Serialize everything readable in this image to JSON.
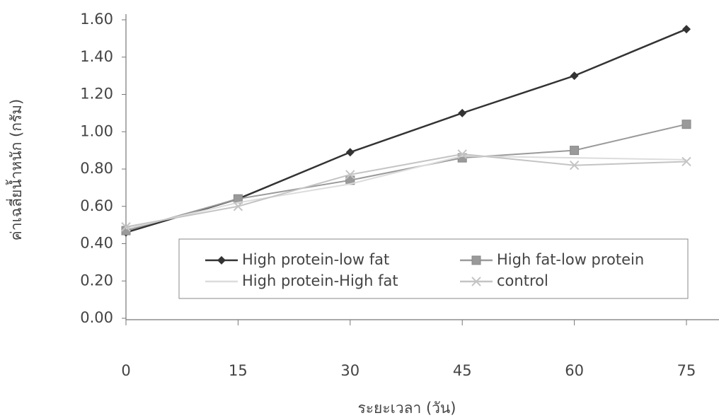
{
  "chart_data": {
    "type": "line",
    "y_label": "ค่าเฉลี่ยน้ำหนัก (กรัม)",
    "x_label": "ระยะเวลา (วัน)",
    "x": [
      0,
      15,
      30,
      45,
      60,
      75
    ],
    "xlim": [
      0,
      75
    ],
    "xticks": [
      0,
      15,
      30,
      45,
      60,
      75
    ],
    "ylim": [
      0,
      1.6
    ],
    "yticks": [
      {
        "value": 0,
        "label": "0.00"
      },
      {
        "value": 0.2,
        "label": "0.20"
      },
      {
        "value": 0.4,
        "label": "0.40"
      },
      {
        "value": 0.6,
        "label": "0.60"
      },
      {
        "value": 0.8,
        "label": "0.80"
      },
      {
        "value": 1.0,
        "label": "1.00"
      },
      {
        "value": 1.2,
        "label": "1.20"
      },
      {
        "value": 1.4,
        "label": "1.40"
      },
      {
        "value": 1.6,
        "label": "1.60"
      }
    ],
    "grid": false,
    "series": [
      {
        "name": "High protein-low fat",
        "color": "#333333",
        "marker": "diamond",
        "values": [
          0.46,
          0.64,
          0.89,
          1.1,
          1.3,
          1.55
        ]
      },
      {
        "name": "High fat-low protein",
        "color": "#9a9a9a",
        "marker": "square",
        "values": [
          0.47,
          0.64,
          0.74,
          0.86,
          0.9,
          1.04
        ]
      },
      {
        "name": "High protein-High fat",
        "color": "#dcdcdc",
        "values": [
          0.48,
          0.62,
          0.72,
          0.87,
          0.86,
          0.85
        ]
      },
      {
        "name": "control",
        "color": "#c4c4c4",
        "marker": "x",
        "values": [
          0.49,
          0.6,
          0.77,
          0.88,
          0.82,
          0.84
        ]
      }
    ]
  }
}
